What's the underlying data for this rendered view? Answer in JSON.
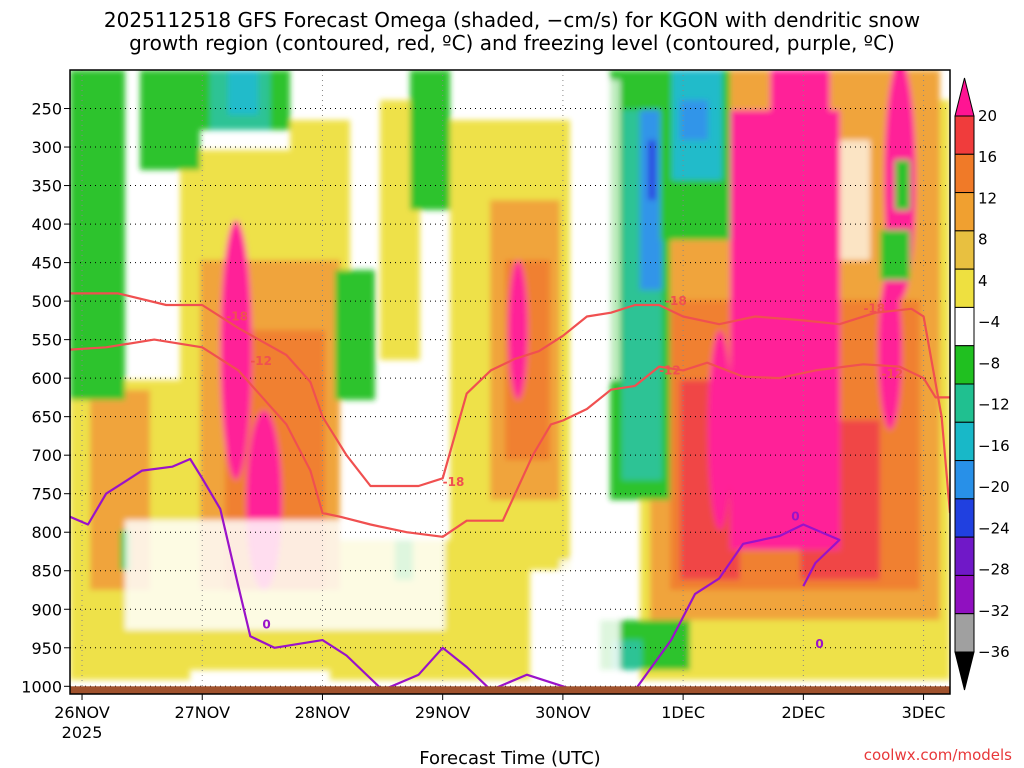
{
  "colors": {
    "accent_red": "#e8383a",
    "freezing_purple": "#9a12c9",
    "ground_brown": "#a0522d",
    "credit_red": "#e8383a"
  },
  "chart_data": {
    "type": "heatmap",
    "title_line1": "2025112518 GFS Forecast Omega (shaded, −cm/s) for KGON with dendritic snow",
    "title_line2": "growth region (contoured, red, ºC) and freezing level (contoured, purple, ºC)",
    "xlabel": "Forecast Time (UTC)",
    "credit": "coolwx.com/models",
    "x_ticks": [
      {
        "t": 0.0,
        "label": "26NOV",
        "sub": "2025"
      },
      {
        "t": 1.0,
        "label": "27NOV",
        "sub": ""
      },
      {
        "t": 2.0,
        "label": "28NOV",
        "sub": ""
      },
      {
        "t": 3.0,
        "label": "29NOV",
        "sub": ""
      },
      {
        "t": 4.0,
        "label": "30NOV",
        "sub": ""
      },
      {
        "t": 5.0,
        "label": "1DEC",
        "sub": ""
      },
      {
        "t": 6.0,
        "label": "2DEC",
        "sub": ""
      },
      {
        "t": 7.0,
        "label": "3DEC",
        "sub": ""
      }
    ],
    "x_range_days": [
      -0.1,
      7.22
    ],
    "y_range_hpa": [
      200,
      1010
    ],
    "y_ticks": [
      250,
      300,
      350,
      400,
      450,
      500,
      550,
      600,
      650,
      700,
      750,
      800,
      850,
      900,
      950,
      1000
    ],
    "colorbar": {
      "labels": [
        "20",
        "16",
        "12",
        "8",
        "4",
        "−4",
        "−8",
        "−12",
        "−16",
        "−20",
        "−24",
        "−28",
        "−32",
        "−36"
      ],
      "colors": [
        "#ff1493",
        "#f03c3c",
        "#f07a28",
        "#f0a030",
        "#e8c040",
        "#eee040",
        "#ffffff",
        "#20c020",
        "#20c090",
        "#18b8c8",
        "#2890e8",
        "#2040e0",
        "#7018c8",
        "#9010c0",
        "#a0a0a0",
        "#000000"
      ]
    },
    "ground_level_hpa": 1000,
    "series": [
      {
        "name": "dendritic growth -12",
        "label": "-12",
        "color": "#f05050",
        "points": [
          [
            -0.1,
            563
          ],
          [
            0.2,
            560
          ],
          [
            0.6,
            550
          ],
          [
            1.0,
            560
          ],
          [
            1.3,
            590
          ],
          [
            1.7,
            660
          ],
          [
            1.9,
            720
          ],
          [
            2.0,
            775
          ],
          [
            2.15,
            780
          ],
          [
            2.4,
            790
          ],
          [
            2.7,
            800
          ],
          [
            3.0,
            806
          ],
          [
            3.2,
            785
          ],
          [
            3.5,
            785
          ],
          [
            3.75,
            700
          ],
          [
            3.9,
            660
          ],
          [
            4.0,
            655
          ],
          [
            4.2,
            640
          ],
          [
            4.4,
            615
          ],
          [
            4.6,
            610
          ],
          [
            4.8,
            585
          ],
          [
            5.0,
            590
          ],
          [
            5.2,
            580
          ],
          [
            5.5,
            598
          ],
          [
            5.8,
            600
          ],
          [
            6.1,
            590
          ],
          [
            6.5,
            582
          ],
          [
            6.8,
            585
          ],
          [
            7.0,
            600
          ],
          [
            7.1,
            625
          ],
          [
            7.22,
            625
          ]
        ],
        "labels_at": [
          [
            1.4,
            583
          ],
          [
            4.8,
            595
          ],
          [
            6.65,
            600
          ]
        ]
      },
      {
        "name": "dendritic growth -18",
        "label": "-18",
        "color": "#f05050",
        "points": [
          [
            -0.1,
            490
          ],
          [
            0.3,
            490
          ],
          [
            0.7,
            505
          ],
          [
            1.0,
            505
          ],
          [
            1.3,
            535
          ],
          [
            1.7,
            570
          ],
          [
            1.9,
            605
          ],
          [
            2.0,
            650
          ],
          [
            2.2,
            700
          ],
          [
            2.4,
            740
          ],
          [
            2.6,
            740
          ],
          [
            2.8,
            740
          ],
          [
            3.0,
            730
          ],
          [
            3.2,
            620
          ],
          [
            3.4,
            590
          ],
          [
            3.6,
            575
          ],
          [
            3.8,
            565
          ],
          [
            4.0,
            545
          ],
          [
            4.2,
            520
          ],
          [
            4.4,
            515
          ],
          [
            4.6,
            505
          ],
          [
            4.8,
            505
          ],
          [
            5.0,
            520
          ],
          [
            5.3,
            530
          ],
          [
            5.6,
            520
          ],
          [
            6.0,
            525
          ],
          [
            6.3,
            530
          ],
          [
            6.6,
            515
          ],
          [
            6.9,
            510
          ],
          [
            7.0,
            520
          ],
          [
            7.15,
            650
          ],
          [
            7.22,
            775
          ]
        ],
        "labels_at": [
          [
            1.2,
            525
          ],
          [
            4.85,
            505
          ],
          [
            6.5,
            515
          ],
          [
            3.0,
            740
          ]
        ]
      },
      {
        "name": "freezing level 0",
        "label": "0",
        "color": "#9a12c9",
        "points": [
          [
            -0.1,
            780
          ],
          [
            0.05,
            790
          ],
          [
            0.2,
            750
          ],
          [
            0.5,
            720
          ],
          [
            0.75,
            715
          ],
          [
            0.9,
            705
          ],
          [
            1.0,
            730
          ],
          [
            1.15,
            770
          ],
          [
            1.3,
            870
          ],
          [
            1.4,
            935
          ],
          [
            1.6,
            950
          ],
          [
            1.8,
            945
          ],
          [
            2.0,
            940
          ],
          [
            2.2,
            960
          ],
          [
            2.5,
            1005
          ],
          [
            2.8,
            985
          ],
          [
            3.0,
            950
          ],
          [
            3.2,
            975
          ],
          [
            3.4,
            1005
          ],
          [
            3.7,
            985
          ],
          [
            4.0,
            1000
          ],
          [
            4.2,
            1010
          ],
          [
            4.6,
            1005
          ],
          [
            4.9,
            940
          ],
          [
            5.1,
            880
          ],
          [
            5.3,
            860
          ],
          [
            5.5,
            815
          ],
          [
            5.8,
            805
          ],
          [
            6.0,
            790
          ],
          [
            6.15,
            800
          ],
          [
            6.3,
            810
          ],
          [
            6.1,
            840
          ],
          [
            6.0,
            870
          ]
        ],
        "labels_at": [
          [
            1.5,
            925
          ],
          [
            5.9,
            785
          ],
          [
            6.1,
            950
          ]
        ]
      }
    ]
  }
}
